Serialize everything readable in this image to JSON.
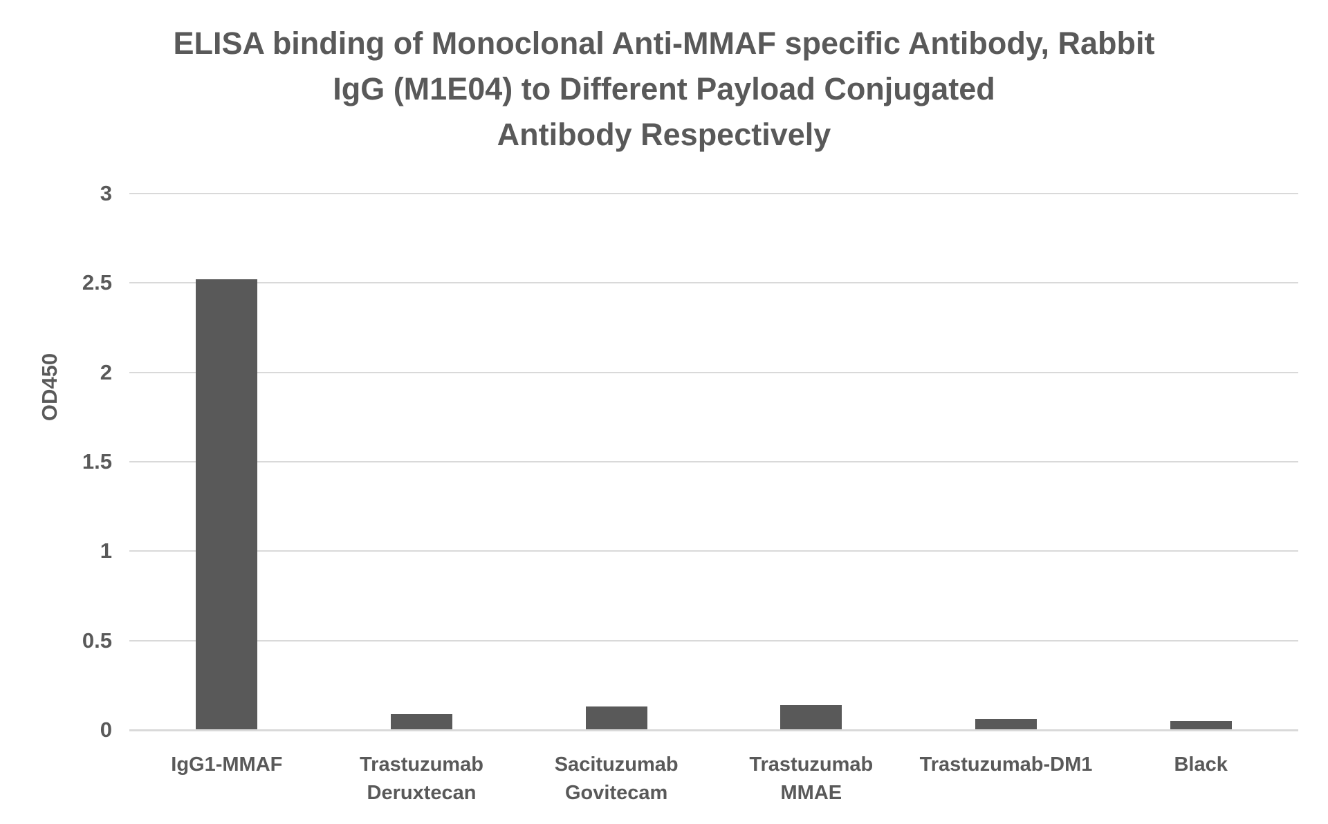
{
  "chart_data": {
    "type": "bar",
    "title": "ELISA binding of Monoclonal Anti-MMAF specific Antibody, Rabbit\nIgG (M1E04) to Different Payload Conjugated\nAntibody Respectively",
    "categories": [
      "IgG1-MMAF",
      "Trastuzumab\nDeruxtecan",
      "Sacituzumab\nGovitecam",
      "Trastuzumab\nMMAE",
      "Trastuzumab-DM1",
      "Black"
    ],
    "values": [
      2.52,
      0.09,
      0.13,
      0.14,
      0.06,
      0.05
    ],
    "xlabel": "",
    "ylabel": "OD450",
    "ylim": [
      0,
      3
    ],
    "ytick_step": 0.5,
    "ytick_labels": [
      "0",
      "0.5",
      "1",
      "1.5",
      "2",
      "2.5",
      "3"
    ],
    "grid": true,
    "legend": null,
    "colors": {
      "bar": "#595959",
      "gridline": "#d9d9d9",
      "axis_line": "#d9d9d9",
      "text": "#595959",
      "background": "#ffffff"
    }
  }
}
